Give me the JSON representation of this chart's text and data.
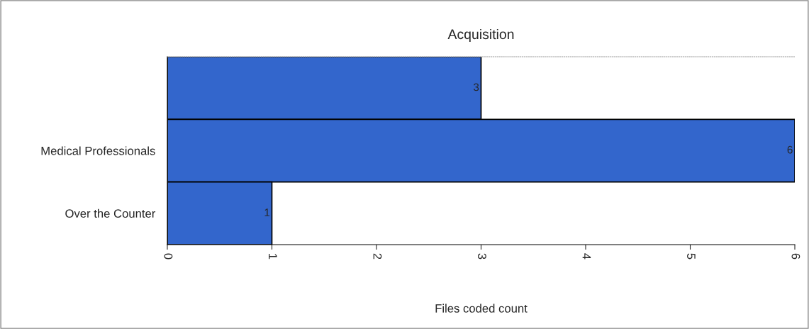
{
  "chart_data": {
    "type": "bar",
    "orientation": "horizontal",
    "title": "Acquisition",
    "xlabel": "Files coded count",
    "categories": [
      null,
      "Medical Professionals",
      "Over the Counter"
    ],
    "values": [
      3,
      6,
      1
    ],
    "color": "#3366cc",
    "data_labels": true,
    "xlim": [
      0,
      6
    ],
    "xticks": [
      0,
      1,
      2,
      3,
      4,
      5,
      6
    ],
    "grid": false,
    "legend": false
  }
}
